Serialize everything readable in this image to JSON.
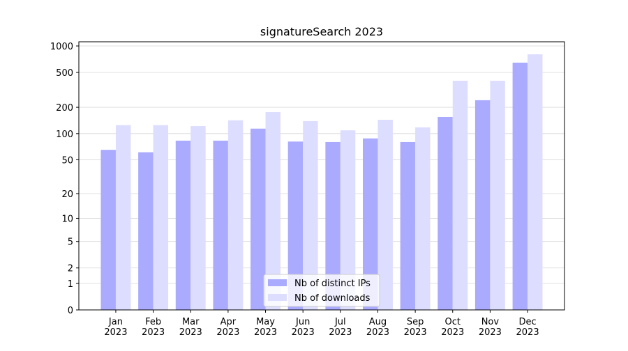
{
  "chart_data": {
    "type": "bar",
    "title": "signatureSearch 2023",
    "categories": [
      "Jan\n2023",
      "Feb\n2023",
      "Mar\n2023",
      "Apr\n2023",
      "May\n2023",
      "Jun\n2023",
      "Jul\n2023",
      "Aug\n2023",
      "Sep\n2023",
      "Oct\n2023",
      "Nov\n2023",
      "Dec\n2023"
    ],
    "series": [
      {
        "name": "Nb of distinct IPs",
        "color": "#aaaaff",
        "values": [
          65,
          61,
          83,
          83,
          114,
          81,
          80,
          88,
          80,
          155,
          241,
          646
        ]
      },
      {
        "name": "Nb of downloads",
        "color": "#ddddff",
        "values": [
          125,
          125,
          122,
          142,
          176,
          139,
          109,
          144,
          118,
          402,
          402,
          804
        ]
      }
    ],
    "y_scale": "log1p",
    "ylim": [
      0,
      1116
    ],
    "yticks": [
      0,
      1,
      2,
      5,
      10,
      20,
      50,
      100,
      200,
      500,
      1000
    ],
    "grid": true,
    "legend": "lower center"
  }
}
